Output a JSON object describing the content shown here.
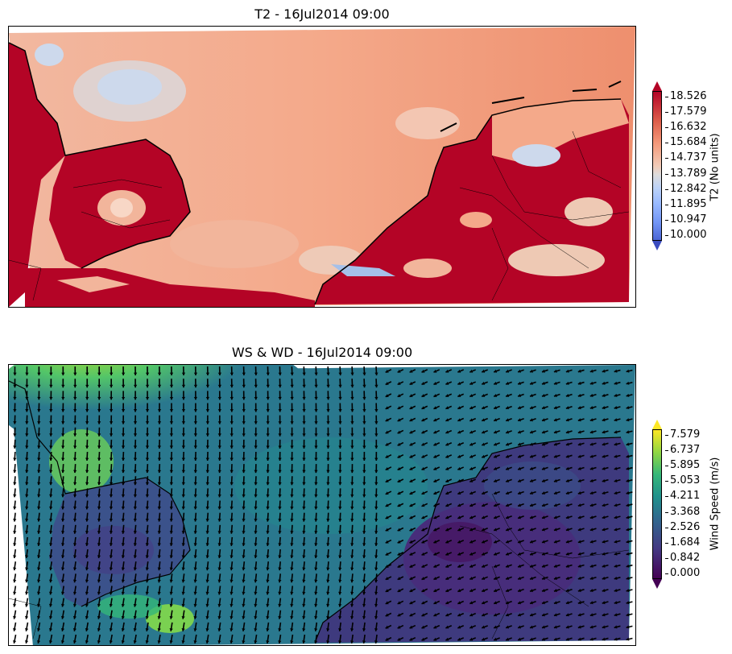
{
  "panels": [
    {
      "id": "t2",
      "title": "T2 - 16Jul2014 09:00",
      "colorbar": {
        "label": "T2 (No units)",
        "colormap": "coolwarm",
        "ticks": [
          "18.526",
          "17.579",
          "16.632",
          "15.684",
          "14.737",
          "13.789",
          "12.842",
          "11.895",
          "10.947",
          "10.000"
        ],
        "min": 10.0,
        "max": 18.526,
        "extend": "both"
      },
      "colors": {
        "sea": "#f4a98a",
        "land_hot": "#b40426",
        "cool": "#cdd9ec",
        "mid": "#eec9b4"
      }
    },
    {
      "id": "ws",
      "title": "WS & WD - 16Jul2014 09:00",
      "colorbar": {
        "label": "Wind Speed (m/s)",
        "colormap": "viridis",
        "ticks": [
          "7.579",
          "6.737",
          "5.895",
          "5.053",
          "4.211",
          "3.368",
          "2.526",
          "1.684",
          "0.842",
          "0.000"
        ],
        "min": 0.0,
        "max": 7.579,
        "extend": "both"
      },
      "colors": {
        "sea": "#2a788e",
        "sea_light": "#3f9f88",
        "bright": "#b8de29",
        "land": "#3b2f74",
        "land_dark": "#46135f"
      }
    }
  ]
}
